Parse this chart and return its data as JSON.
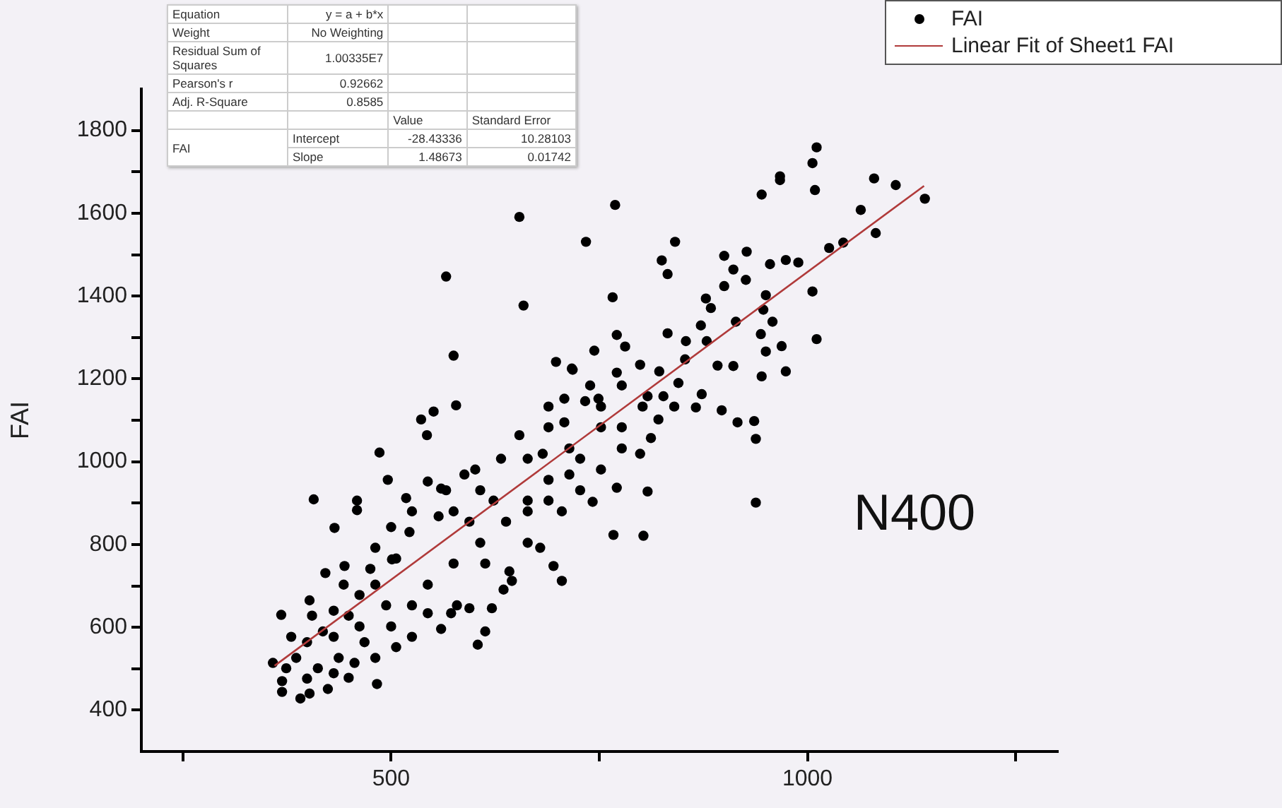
{
  "chart_data": {
    "type": "scatter",
    "ylabel": "FAI",
    "xlim": [
      200,
      1300
    ],
    "ylim": [
      300,
      1900
    ],
    "xticks": [
      {
        "value": 250,
        "label": null
      },
      500,
      {
        "value": 750,
        "label": null
      },
      1000,
      {
        "value": 1250,
        "label": null
      }
    ],
    "yticks": [
      400,
      {
        "value": 500,
        "label": null
      },
      600,
      {
        "value": 700,
        "label": null
      },
      800,
      {
        "value": 900,
        "label": null
      },
      1000,
      {
        "value": 1100,
        "label": null
      },
      1200,
      {
        "value": 1300,
        "label": null
      },
      1400,
      {
        "value": 1500,
        "label": null
      },
      1600,
      {
        "value": 1700,
        "label": null
      },
      1800
    ],
    "grid": false,
    "legend": "top right",
    "annotations": [
      "Equation",
      "y = a + b*x",
      "Weight",
      "No Weighting",
      "Residual Sum of Squares",
      "1.00335E7",
      "Pearson's r",
      "0.92662",
      "Adj. R-Square",
      "0.8585",
      "Value",
      "Standard Error",
      "FAI",
      "Intercept",
      "-28.43336",
      "10.28103",
      "Slope",
      "1.48673",
      "0.01742",
      "N400"
    ],
    "series": [
      {
        "name": "FAI",
        "color": "#000000",
        "marker": "circle",
        "x": [
          1011,
          1006,
          967,
          967,
          945,
          1009,
          1080,
          1106,
          1141,
          1064,
          1082,
          1043,
          1026,
          1006,
          1011,
          769,
          654,
          734,
          841,
          825,
          832,
          766,
          659,
          566,
          575,
          578,
          536,
          551,
          543,
          486,
          496,
          407,
          459,
          459,
          432,
          518,
          544,
          560,
          900,
          927,
          911,
          926,
          900,
          878,
          884,
          950,
          955,
          974,
          989,
          947,
          958,
          944,
          969,
          950,
          974,
          945,
          914,
          872,
          879,
          892,
          911,
          897,
          916,
          936,
          938,
          938,
          866,
          873,
          845,
          854,
          832,
          781,
          771,
          744,
          698,
          717,
          822,
          799,
          771,
          808,
          840,
          821,
          812,
          799,
          777,
          752,
          727,
          771,
          808,
          767,
          803,
          742,
          705,
          705,
          695,
          679,
          664,
          645,
          635,
          642,
          613,
          621,
          613,
          604,
          594,
          579,
          572,
          560,
          544,
          525,
          506,
          483,
          449,
          424,
          402,
          391,
          369,
          369,
          358,
          368,
          402,
          421,
          444,
          481,
          501,
          522,
          557,
          594,
          623,
          664,
          689,
          682,
          714,
          689,
          654,
          689,
          708,
          733,
          718,
          749,
          752,
          739,
          632,
          601,
          588,
          566,
          525,
          500,
          481,
          462,
          449,
          431,
          418,
          399,
          386,
          374,
          412,
          437,
          468,
          500,
          525,
          544,
          575,
          607,
          638,
          664,
          689,
          714,
          727,
          777,
          802,
          827,
          853,
          777,
          752,
          708,
          664,
          607,
          575,
          506,
          475,
          443,
          405,
          380,
          431,
          462,
          494,
          399,
          431,
          456,
          481
        ],
        "values": [
          1759,
          1721,
          1689,
          1680,
          1645,
          1656,
          1684,
          1668,
          1635,
          1608,
          1552,
          1529,
          1516,
          1411,
          1296,
          1620,
          1591,
          1531,
          1531,
          1486,
          1453,
          1397,
          1377,
          1447,
          1256,
          1136,
          1102,
          1121,
          1064,
          1022,
          956,
          909,
          906,
          883,
          840,
          912,
          952,
          935,
          1497,
          1507,
          1464,
          1439,
          1424,
          1394,
          1371,
          1402,
          1477,
          1487,
          1481,
          1367,
          1338,
          1308,
          1279,
          1266,
          1218,
          1206,
          1338,
          1329,
          1291,
          1232,
          1231,
          1124,
          1095,
          1098,
          1055,
          901,
          1131,
          1163,
          1190,
          1291,
          1310,
          1278,
          1306,
          1268,
          1241,
          1225,
          1218,
          1234,
          1215,
          1158,
          1133,
          1102,
          1057,
          1019,
          1032,
          981,
          931,
          937,
          928,
          823,
          821,
          903,
          880,
          712,
          748,
          792,
          804,
          712,
          691,
          735,
          754,
          646,
          590,
          558,
          646,
          653,
          634,
          596,
          634,
          577,
          552,
          463,
          478,
          451,
          440,
          428,
          444,
          470,
          514,
          630,
          665,
          731,
          748,
          792,
          764,
          830,
          868,
          855,
          906,
          906,
          956,
          1019,
          1032,
          1083,
          1064,
          1133,
          1152,
          1146,
          1222,
          1152,
          1083,
          1184,
          1007,
          981,
          969,
          931,
          880,
          842,
          703,
          678,
          628,
          640,
          590,
          564,
          526,
          501,
          501,
          526,
          564,
          602,
          653,
          703,
          754,
          804,
          855,
          880,
          906,
          969,
          1007,
          1083,
          1133,
          1158,
          1247,
          1184,
          1133,
          1095,
          1007,
          931,
          880,
          766,
          741,
          703,
          628,
          577,
          577,
          602,
          653,
          476,
          489,
          514,
          526
        ]
      },
      {
        "name": "Linear Fit of Sheet1 FAI",
        "type": "line",
        "color": "#b03a3a",
        "marker": "none",
        "line_style": "solid",
        "x": [
          360,
          1140
        ],
        "values": [
          507,
          1666
        ]
      }
    ]
  }
}
